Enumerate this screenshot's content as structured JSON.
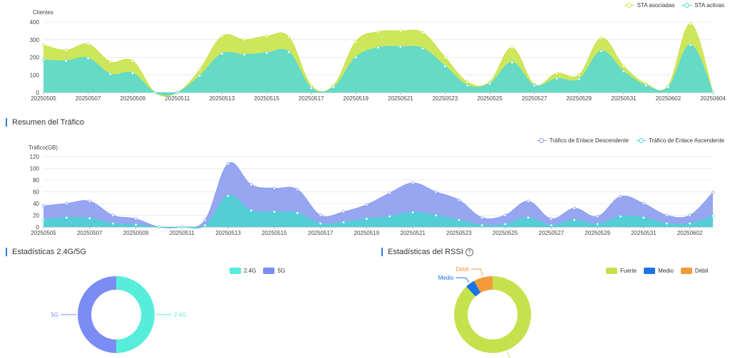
{
  "clients_chart": {
    "ylabel": "Clientes",
    "legend": [
      {
        "name": "STA asociadas",
        "color": "#c8e34a"
      },
      {
        "name": "STA activas",
        "color": "#5ad8d0"
      }
    ]
  },
  "traffic_section": {
    "title": "Resumen del Tráfico",
    "ylabel": "Tráfico(GB)",
    "legend": [
      {
        "name": "Tráfico de Enlace Descendente",
        "color": "#8c9cf0"
      },
      {
        "name": "Tráfico de Enlace Ascendente",
        "color": "#4dd1d4"
      }
    ]
  },
  "band_section": {
    "title": "Estadísticas 2.4G/5G",
    "legend": [
      {
        "name": "2.4G",
        "color": "#56eedb"
      },
      {
        "name": "5G",
        "color": "#7b8cf4"
      }
    ]
  },
  "rssi_section": {
    "title": "Estadísticas del RSSI",
    "help_icon": "question-icon",
    "legend": [
      {
        "name": "Fuerte",
        "color": "#c5e24d"
      },
      {
        "name": "Medio",
        "color": "#1a73e8"
      },
      {
        "name": "Débil",
        "color": "#f39a3b"
      }
    ]
  },
  "chart_data": [
    {
      "type": "area",
      "title": "",
      "ylabel": "Clientes",
      "x": [
        "20250505",
        "20250506",
        "20250507",
        "20250508",
        "20250509",
        "20250510",
        "20250511",
        "20250512",
        "20250513",
        "20250514",
        "20250515",
        "20250516",
        "20250517",
        "20250518",
        "20250519",
        "20250520",
        "20250521",
        "20250522",
        "20250523",
        "20250524",
        "20250525",
        "20250526",
        "20250527",
        "20250528",
        "20250529",
        "20250530",
        "20250531",
        "20250601",
        "20250602",
        "20250603",
        "20250604"
      ],
      "xticks": [
        "20250505",
        "20250507",
        "20250509",
        "20250511",
        "20250513",
        "20250515",
        "20250517",
        "20250519",
        "20250521",
        "20250523",
        "20250525",
        "20250527",
        "20250529",
        "20250531",
        "20250602",
        "20250604"
      ],
      "yticks": [
        0,
        100,
        200,
        300,
        400
      ],
      "ylim": [
        0,
        400
      ],
      "series": [
        {
          "name": "STA asociadas",
          "color": "#c8e34a",
          "values": [
            270,
            240,
            275,
            175,
            180,
            0,
            0,
            130,
            320,
            300,
            320,
            315,
            40,
            40,
            290,
            345,
            350,
            340,
            200,
            60,
            60,
            255,
            45,
            110,
            100,
            310,
            150,
            50,
            40,
            390,
            0
          ]
        },
        {
          "name": "STA activas",
          "color": "#5ad8d0",
          "values": [
            185,
            180,
            195,
            105,
            110,
            0,
            0,
            95,
            220,
            215,
            225,
            230,
            25,
            30,
            200,
            255,
            260,
            250,
            150,
            40,
            50,
            170,
            40,
            80,
            75,
            235,
            120,
            40,
            30,
            270,
            0
          ]
        }
      ],
      "grid": true,
      "legend_position": "top-right"
    },
    {
      "type": "area",
      "title": "",
      "ylabel": "Tráfico(GB)",
      "x": [
        "20250505",
        "20250506",
        "20250507",
        "20250508",
        "20250509",
        "20250510",
        "20250511",
        "20250512",
        "20250513",
        "20250514",
        "20250515",
        "20250516",
        "20250517",
        "20250518",
        "20250519",
        "20250520",
        "20250521",
        "20250522",
        "20250523",
        "20250524",
        "20250525",
        "20250526",
        "20250527",
        "20250528",
        "20250529",
        "20250530",
        "20250531",
        "20250601",
        "20250602",
        "20250603"
      ],
      "xticks": [
        "20250505",
        "20250507",
        "20250509",
        "20250511",
        "20250513",
        "20250515",
        "20250517",
        "20250519",
        "20250521",
        "20250523",
        "20250525",
        "20250527",
        "20250529",
        "20250531",
        "20250602"
      ],
      "yticks": [
        0,
        20,
        40,
        60,
        80,
        100,
        120
      ],
      "ylim": [
        0,
        120
      ],
      "series": [
        {
          "name": "Tráfico de Enlace Descendente",
          "color": "#8c9cf0",
          "values": [
            36,
            40,
            44,
            20,
            14,
            0,
            0,
            12,
            108,
            72,
            66,
            64,
            20,
            26,
            38,
            58,
            75,
            60,
            46,
            16,
            20,
            44,
            14,
            32,
            18,
            52,
            40,
            20,
            20,
            59
          ]
        },
        {
          "name": "Tráfico de Enlace Ascendente",
          "color": "#4dd1d4",
          "values": [
            13,
            16,
            15,
            6,
            4,
            0,
            0,
            3,
            53,
            28,
            26,
            24,
            6,
            8,
            14,
            18,
            25,
            20,
            12,
            3,
            5,
            16,
            3,
            12,
            5,
            18,
            16,
            6,
            6,
            19
          ]
        }
      ],
      "grid": true,
      "legend_position": "top-right"
    },
    {
      "type": "pie",
      "title": "Estadísticas 2.4G/5G",
      "slices": [
        {
          "label": "2.4G",
          "value": 50,
          "color": "#56eedb"
        },
        {
          "label": "5G",
          "value": 50,
          "color": "#7b8cf4"
        }
      ],
      "legend_position": "top-right"
    },
    {
      "type": "pie",
      "title": "Estadísticas del RSSI",
      "slices": [
        {
          "label": "Fuerte",
          "value": 88,
          "color": "#c5e24d"
        },
        {
          "label": "Medio",
          "value": 4,
          "color": "#1a73e8"
        },
        {
          "label": "Débil",
          "value": 8,
          "color": "#f39a3b"
        }
      ],
      "legend_position": "top-right"
    }
  ]
}
